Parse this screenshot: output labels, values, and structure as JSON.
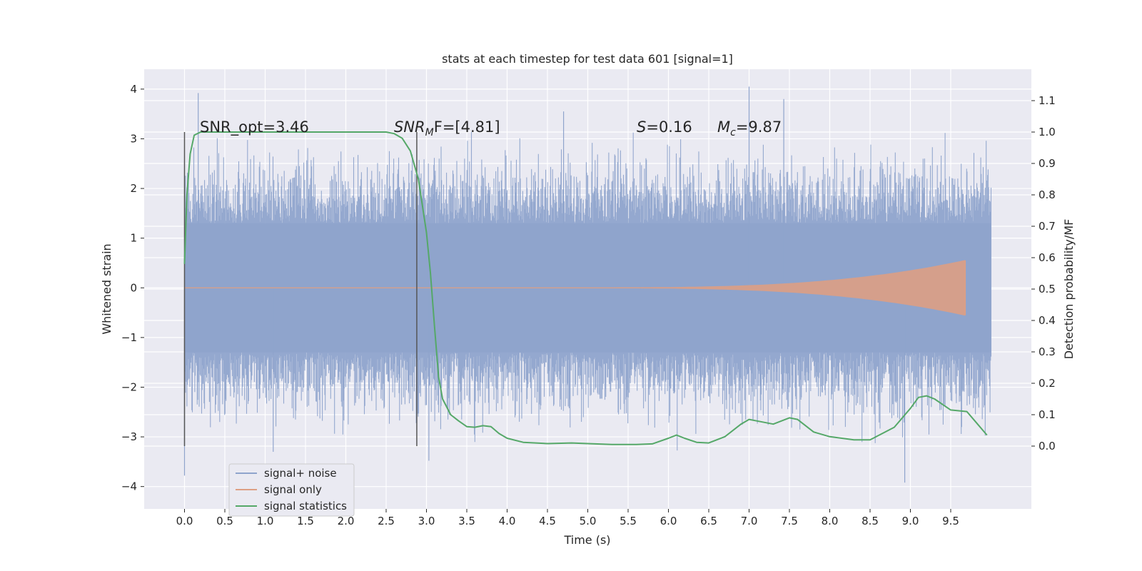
{
  "chart_data": {
    "type": "line",
    "title": "stats at each timestep for test data 601 [signal=1]",
    "xlabel": "Time (s)",
    "ylabel_left": "Whitened strain",
    "ylabel_right": "Detection probability/MF",
    "xlim": [
      -0.5,
      10.5
    ],
    "ylim_left": [
      -4.45,
      4.4
    ],
    "ylim_right": [
      -0.2,
      1.2
    ],
    "x_ticks": [
      "0.0",
      "0.5",
      "1.0",
      "1.5",
      "2.0",
      "2.5",
      "3.0",
      "3.5",
      "4.0",
      "4.5",
      "5.0",
      "5.5",
      "6.0",
      "6.5",
      "7.0",
      "7.5",
      "8.0",
      "8.5",
      "9.0",
      "9.5"
    ],
    "y_left_ticks": [
      "−4",
      "−3",
      "−2",
      "−1",
      "0",
      "1",
      "2",
      "3",
      "4"
    ],
    "y_right_ticks": [
      "0.0",
      "0.1",
      "0.2",
      "0.3",
      "0.4",
      "0.5",
      "0.6",
      "0.7",
      "0.8",
      "0.9",
      "1.0",
      "1.1"
    ],
    "grid": true,
    "legend_position": "lower-left",
    "annotations": {
      "snr_opt": "SNR_opt=3.46",
      "snr_mf_main": "SNR",
      "snr_mf_sub": "M",
      "snr_mf_rest": "F=[4.81]",
      "s_italic": "S",
      "s_rest": "=0.16",
      "mc_italic": "M",
      "mc_sub": "c",
      "mc_rest": "=9.87"
    },
    "vlines_x": [
      0.0,
      2.88
    ],
    "series": [
      {
        "name": "signal+ noise",
        "color": "#8fa4cc",
        "axis": "left",
        "description_range": [
          0.0,
          10.0
        ],
        "band_core": [
          -1.3,
          1.3
        ],
        "extreme_peaks": [
          [
            0.17,
            3.92
          ],
          [
            0.0,
            -3.78
          ],
          [
            7.0,
            4.05
          ],
          [
            7.43,
            3.8
          ],
          [
            3.03,
            -3.48
          ],
          [
            8.93,
            -3.92
          ],
          [
            1.1,
            -3.3
          ],
          [
            4.7,
            3.55
          ]
        ]
      },
      {
        "name": "signal only",
        "color": "#dd9f84",
        "axis": "left",
        "chirp_start": 5.0,
        "chirp_end": 9.68,
        "amplitude_end": 0.55
      },
      {
        "name": "signal statistics",
        "color": "#55a868",
        "axis": "right",
        "x": [
          0.0,
          0.03,
          0.07,
          0.12,
          0.2,
          0.4,
          1.0,
          2.0,
          2.5,
          2.6,
          2.7,
          2.8,
          2.9,
          3.0,
          3.05,
          3.1,
          3.15,
          3.2,
          3.3,
          3.4,
          3.5,
          3.6,
          3.7,
          3.8,
          3.9,
          4.0,
          4.2,
          4.5,
          4.8,
          5.0,
          5.3,
          5.6,
          5.8,
          6.0,
          6.1,
          6.2,
          6.35,
          6.5,
          6.7,
          6.9,
          7.0,
          7.1,
          7.3,
          7.5,
          7.6,
          7.8,
          8.0,
          8.3,
          8.5,
          8.8,
          9.0,
          9.1,
          9.2,
          9.3,
          9.5,
          9.7,
          9.8,
          9.95
        ],
        "y": [
          0.58,
          0.8,
          0.93,
          0.99,
          1.0,
          1.0,
          1.0,
          1.0,
          1.0,
          0.995,
          0.98,
          0.94,
          0.85,
          0.68,
          0.55,
          0.38,
          0.22,
          0.15,
          0.1,
          0.08,
          0.062,
          0.06,
          0.065,
          0.062,
          0.04,
          0.025,
          0.012,
          0.008,
          0.01,
          0.008,
          0.005,
          0.005,
          0.007,
          0.025,
          0.035,
          0.025,
          0.012,
          0.01,
          0.03,
          0.07,
          0.085,
          0.08,
          0.07,
          0.09,
          0.085,
          0.045,
          0.03,
          0.02,
          0.02,
          0.06,
          0.12,
          0.155,
          0.16,
          0.15,
          0.115,
          0.11,
          0.08,
          0.035
        ]
      }
    ]
  }
}
